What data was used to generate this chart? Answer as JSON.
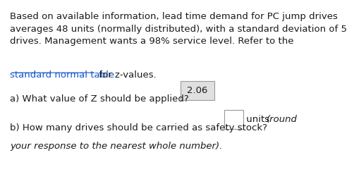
{
  "background_color": "#ffffff",
  "paragraph_text": "Based on available information, lead time demand for PC jump drives\naverages 48 units (normally distributed), with a standard deviation of 5\ndrives. Management wants a 98% service level. Refer to the",
  "link_text": "standard normal table",
  "link_suffix": " for z-values.",
  "question_a": "a) What value of Z should be applied?  ",
  "answer_a": "2.06",
  "question_b_prefix": "b) How many drives should be carried as safety stock?",
  "question_b_suffix": " units ",
  "question_b_italic": "(round\nyour response to the nearest whole number).",
  "link_color": "#1155cc",
  "text_color": "#1a1a1a",
  "box_bg_color": "#e0e0e0",
  "box_border_color": "#999999",
  "font_size": 9.5,
  "italic_font_size": 9.5
}
